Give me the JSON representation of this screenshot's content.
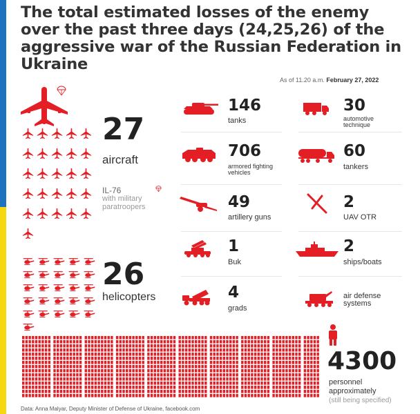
{
  "title": "The total estimated losses of the enemy over the past three days (24,25,26) of the aggressive war of the Russian Federation in Ukraine",
  "date": {
    "prefix": "As of 11.20 a.m.",
    "value": "February 27, 2022"
  },
  "aircraft": {
    "count": "27",
    "label": "aircraft",
    "il76_label": "IL-76",
    "il76_note": "with military paratroopers"
  },
  "helicopters": {
    "count": "26",
    "label": "helicopters"
  },
  "personnel": {
    "count": "4300",
    "label": "personnel approximately",
    "note": "(still being specified)"
  },
  "stats_left": [
    {
      "value": "146",
      "label": "tanks",
      "icon": "tank-icon"
    },
    {
      "value": "706",
      "label": "armored fighting vehicles",
      "icon": "armored-vehicle-icon"
    },
    {
      "value": "49",
      "label": "artillery guns",
      "icon": "artillery-icon"
    },
    {
      "value": "1",
      "label": "Buk",
      "icon": "buk-launcher-icon"
    },
    {
      "value": "4",
      "label": "grads",
      "icon": "grad-launcher-icon"
    }
  ],
  "stats_right": [
    {
      "value": "30",
      "label": "automotive technique",
      "icon": "truck-icon"
    },
    {
      "value": "60",
      "label": "tankers",
      "icon": "fuel-tanker-icon"
    },
    {
      "value": "2",
      "label": "UAV OTR",
      "icon": "drone-icon"
    },
    {
      "value": "2",
      "label": "ships/boats",
      "icon": "ship-icon"
    },
    {
      "value": "",
      "label": "air defense systems",
      "icon": "air-defense-icon"
    }
  ],
  "source": "Data: Anna Malyar, Deputy Minister of Defense of Ukraine, facebook.com",
  "colors": {
    "accent": "#e31e24",
    "text": "#222222",
    "muted": "#999999",
    "blue": "#1e73be",
    "yellow": "#f5d80f"
  }
}
